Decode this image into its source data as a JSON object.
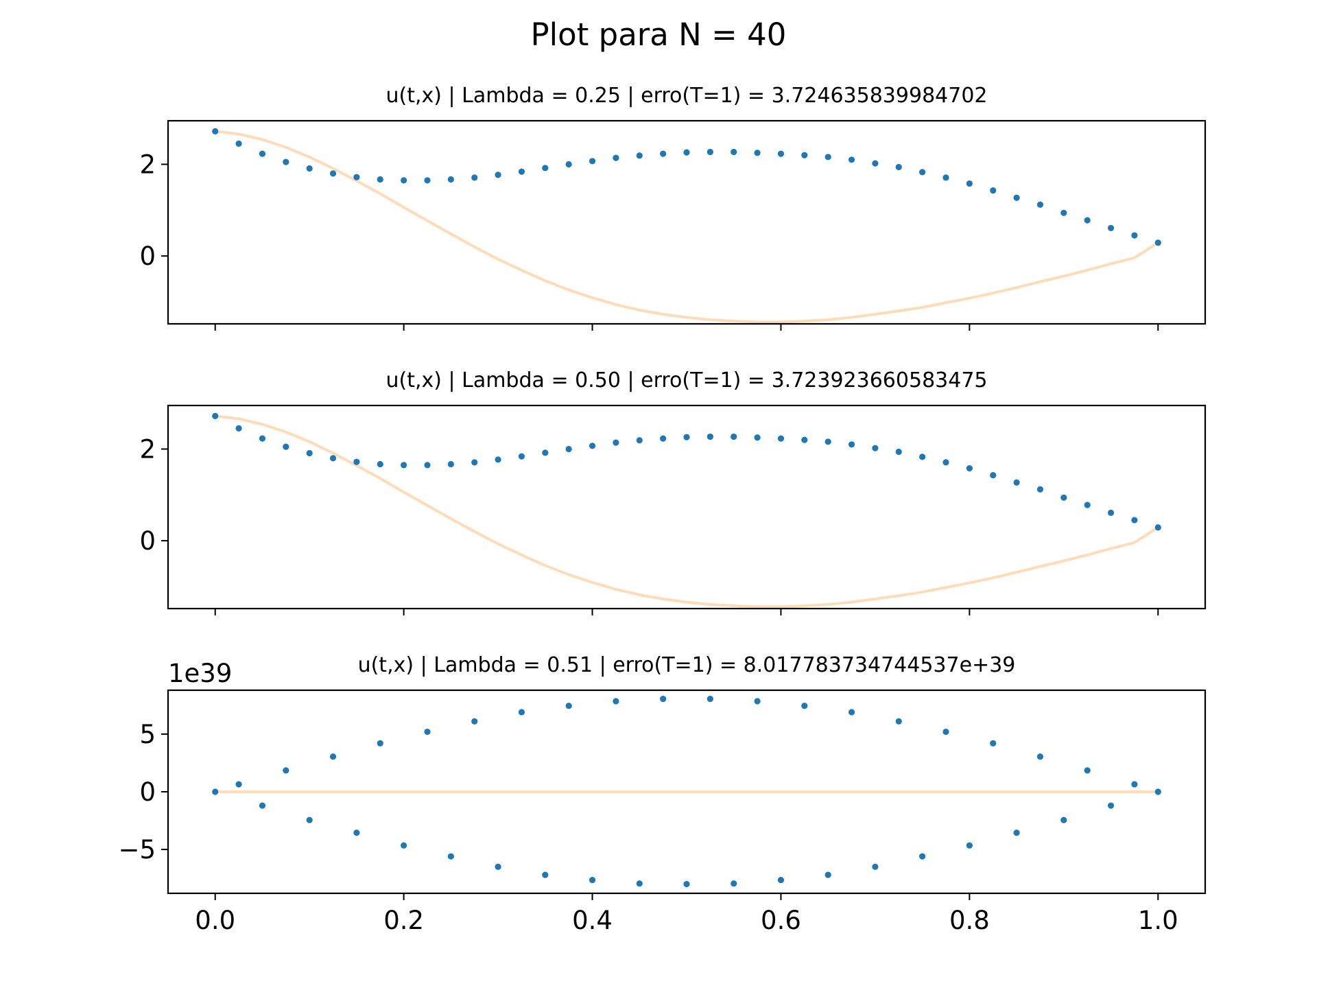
{
  "figure": {
    "suptitle": "Plot para N = 40"
  },
  "chart_data": [
    {
      "type": "line",
      "title": "u(t,x) | Lambda = 0.25 | erro(T=1) = 3.724635839984702",
      "offset_text": "",
      "xlim": [
        -0.05,
        1.05
      ],
      "ylim": [
        -1.48,
        2.95
      ],
      "xticks": [
        0.0,
        0.2,
        0.4,
        0.6,
        0.8,
        1.0
      ],
      "xtick_labels": [],
      "yticks": [
        0,
        2
      ],
      "ytick_labels": [
        "0",
        "2"
      ],
      "grid": false,
      "series": [
        {
          "style": "line",
          "color": "#ffdcb8",
          "x": [
            0.0,
            0.025,
            0.05,
            0.075,
            0.1,
            0.125,
            0.15,
            0.175,
            0.2,
            0.225,
            0.25,
            0.275,
            0.3,
            0.325,
            0.35,
            0.375,
            0.4,
            0.425,
            0.45,
            0.475,
            0.5,
            0.525,
            0.55,
            0.575,
            0.6,
            0.625,
            0.65,
            0.675,
            0.7,
            0.725,
            0.75,
            0.775,
            0.8,
            0.825,
            0.85,
            0.875,
            0.9,
            0.925,
            0.95,
            0.975,
            1.0
          ],
          "y": [
            2.72,
            2.66,
            2.54,
            2.37,
            2.16,
            1.91,
            1.64,
            1.36,
            1.06,
            0.77,
            0.48,
            0.2,
            -0.07,
            -0.31,
            -0.54,
            -0.74,
            -0.91,
            -1.06,
            -1.18,
            -1.27,
            -1.34,
            -1.39,
            -1.42,
            -1.44,
            -1.44,
            -1.42,
            -1.39,
            -1.34,
            -1.27,
            -1.2,
            -1.12,
            -1.02,
            -0.92,
            -0.81,
            -0.69,
            -0.56,
            -0.44,
            -0.31,
            -0.17,
            -0.04,
            0.29
          ]
        },
        {
          "style": "points",
          "color": "#1f77b4",
          "x": [
            0.0,
            0.025,
            0.05,
            0.075,
            0.1,
            0.125,
            0.15,
            0.175,
            0.2,
            0.225,
            0.25,
            0.275,
            0.3,
            0.325,
            0.35,
            0.375,
            0.4,
            0.425,
            0.45,
            0.475,
            0.5,
            0.525,
            0.55,
            0.575,
            0.6,
            0.625,
            0.65,
            0.675,
            0.7,
            0.725,
            0.75,
            0.775,
            0.8,
            0.825,
            0.85,
            0.875,
            0.9,
            0.925,
            0.95,
            0.975,
            1.0
          ],
          "y": [
            2.72,
            2.45,
            2.23,
            2.05,
            1.91,
            1.8,
            1.72,
            1.67,
            1.65,
            1.65,
            1.67,
            1.71,
            1.77,
            1.84,
            1.92,
            2.0,
            2.07,
            2.14,
            2.19,
            2.23,
            2.26,
            2.27,
            2.27,
            2.25,
            2.23,
            2.2,
            2.16,
            2.1,
            2.02,
            1.94,
            1.83,
            1.71,
            1.58,
            1.43,
            1.27,
            1.12,
            0.94,
            0.78,
            0.61,
            0.45,
            0.29
          ]
        }
      ]
    },
    {
      "type": "line",
      "title": "u(t,x) | Lambda = 0.50 | erro(T=1) = 3.723923660583475",
      "offset_text": "",
      "xlim": [
        -0.05,
        1.05
      ],
      "ylim": [
        -1.48,
        2.95
      ],
      "xticks": [
        0.0,
        0.2,
        0.4,
        0.6,
        0.8,
        1.0
      ],
      "xtick_labels": [],
      "yticks": [
        0,
        2
      ],
      "ytick_labels": [
        "0",
        "2"
      ],
      "grid": false,
      "series": [
        {
          "style": "line",
          "color": "#ffdcb8",
          "x": [
            0.0,
            0.025,
            0.05,
            0.075,
            0.1,
            0.125,
            0.15,
            0.175,
            0.2,
            0.225,
            0.25,
            0.275,
            0.3,
            0.325,
            0.35,
            0.375,
            0.4,
            0.425,
            0.45,
            0.475,
            0.5,
            0.525,
            0.55,
            0.575,
            0.6,
            0.625,
            0.65,
            0.675,
            0.7,
            0.725,
            0.75,
            0.775,
            0.8,
            0.825,
            0.85,
            0.875,
            0.9,
            0.925,
            0.95,
            0.975,
            1.0
          ],
          "y": [
            2.72,
            2.66,
            2.54,
            2.37,
            2.16,
            1.91,
            1.64,
            1.36,
            1.06,
            0.77,
            0.48,
            0.2,
            -0.07,
            -0.31,
            -0.54,
            -0.74,
            -0.91,
            -1.06,
            -1.18,
            -1.27,
            -1.34,
            -1.39,
            -1.42,
            -1.44,
            -1.44,
            -1.42,
            -1.39,
            -1.34,
            -1.27,
            -1.2,
            -1.12,
            -1.02,
            -0.92,
            -0.81,
            -0.69,
            -0.56,
            -0.44,
            -0.31,
            -0.17,
            -0.04,
            0.29
          ]
        },
        {
          "style": "points",
          "color": "#1f77b4",
          "x": [
            0.0,
            0.025,
            0.05,
            0.075,
            0.1,
            0.125,
            0.15,
            0.175,
            0.2,
            0.225,
            0.25,
            0.275,
            0.3,
            0.325,
            0.35,
            0.375,
            0.4,
            0.425,
            0.45,
            0.475,
            0.5,
            0.525,
            0.55,
            0.575,
            0.6,
            0.625,
            0.65,
            0.675,
            0.7,
            0.725,
            0.75,
            0.775,
            0.8,
            0.825,
            0.85,
            0.875,
            0.9,
            0.925,
            0.95,
            0.975,
            1.0
          ],
          "y": [
            2.72,
            2.45,
            2.23,
            2.05,
            1.91,
            1.8,
            1.72,
            1.67,
            1.65,
            1.65,
            1.67,
            1.71,
            1.77,
            1.84,
            1.92,
            2.0,
            2.07,
            2.14,
            2.19,
            2.23,
            2.26,
            2.27,
            2.27,
            2.25,
            2.23,
            2.2,
            2.16,
            2.1,
            2.02,
            1.94,
            1.83,
            1.71,
            1.58,
            1.43,
            1.27,
            1.12,
            0.94,
            0.78,
            0.61,
            0.45,
            0.29
          ]
        }
      ]
    },
    {
      "type": "line",
      "title": "u(t,x) | Lambda = 0.51 | erro(T=1) = 8.017783734744537e+39",
      "offset_text": "1e39",
      "xlim": [
        -0.05,
        1.05
      ],
      "ylim": [
        -8.8,
        8.8
      ],
      "xticks": [
        0.0,
        0.2,
        0.4,
        0.6,
        0.8,
        1.0
      ],
      "xtick_labels": [
        "0.0",
        "0.2",
        "0.4",
        "0.6",
        "0.8",
        "1.0"
      ],
      "yticks": [
        -5,
        0,
        5
      ],
      "ytick_labels": [
        "−5",
        "0",
        "5"
      ],
      "grid": false,
      "series": [
        {
          "style": "line",
          "color": "#ffdcb8",
          "x": [
            0.0,
            1.0
          ],
          "y": [
            0.0,
            0.0
          ]
        },
        {
          "style": "points",
          "color": "#1f77b4",
          "x": [
            0.0,
            0.025,
            0.05,
            0.075,
            0.1,
            0.125,
            0.15,
            0.175,
            0.2,
            0.225,
            0.25,
            0.275,
            0.3,
            0.325,
            0.35,
            0.375,
            0.4,
            0.425,
            0.45,
            0.475,
            0.5,
            0.525,
            0.55,
            0.575,
            0.6,
            0.625,
            0.65,
            0.675,
            0.7,
            0.725,
            0.75,
            0.775,
            0.8,
            0.825,
            0.85,
            0.875,
            0.9,
            0.925,
            0.95,
            0.975,
            1.0
          ],
          "y": [
            0.0,
            0.65,
            -1.2,
            1.85,
            -2.45,
            3.05,
            -3.55,
            4.2,
            -4.65,
            5.2,
            -5.6,
            6.1,
            -6.5,
            6.9,
            -7.2,
            7.45,
            -7.65,
            7.85,
            -7.95,
            8.05,
            -8.0,
            8.05,
            -7.95,
            7.85,
            -7.65,
            7.45,
            -7.2,
            6.9,
            -6.5,
            6.1,
            -5.6,
            5.2,
            -4.65,
            4.2,
            -3.55,
            3.05,
            -2.45,
            1.85,
            -1.2,
            0.65,
            0.0
          ]
        }
      ]
    }
  ]
}
